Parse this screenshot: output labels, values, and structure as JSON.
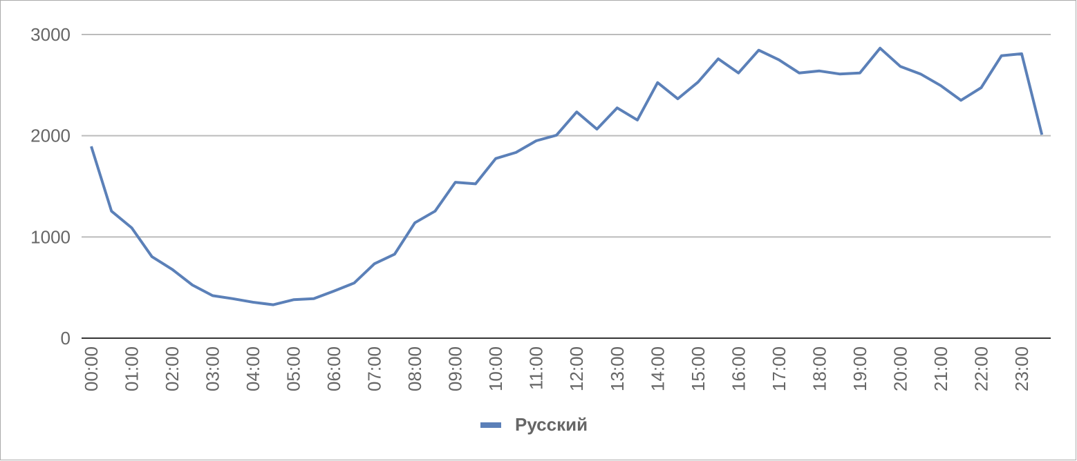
{
  "chart_data": {
    "type": "line",
    "categories": [
      "00:00",
      null,
      "01:00",
      null,
      "02:00",
      null,
      "03:00",
      null,
      "04:00",
      null,
      "05:00",
      null,
      "06:00",
      null,
      "07:00",
      null,
      "08:00",
      null,
      "09:00",
      null,
      "10:00",
      null,
      "11:00",
      null,
      "12:00",
      null,
      "13:00",
      null,
      "14:00",
      null,
      "15:00",
      null,
      "16:00",
      null,
      "17:00",
      null,
      "18:00",
      null,
      "19:00",
      null,
      "20:00",
      null,
      "21:00",
      null,
      "22:00",
      null,
      "23:00",
      null
    ],
    "series": [
      {
        "name": "Русский",
        "color": "#5b80b8",
        "values": [
          1895,
          1255,
          1090,
          805,
          680,
          525,
          420,
          390,
          355,
          330,
          380,
          390,
          465,
          545,
          735,
          830,
          1140,
          1255,
          1540,
          1525,
          1775,
          1835,
          1950,
          2005,
          2235,
          2065,
          2275,
          2155,
          2525,
          2365,
          2530,
          2760,
          2620,
          2845,
          2750,
          2620,
          2640,
          2610,
          2620,
          2865,
          2685,
          2610,
          2495,
          2350,
          2475,
          2790,
          2810,
          2010
        ]
      }
    ],
    "ylim": [
      0,
      3000
    ],
    "yticks": [
      0,
      1000,
      2000,
      3000
    ],
    "grid": true,
    "legend": "bottom"
  }
}
